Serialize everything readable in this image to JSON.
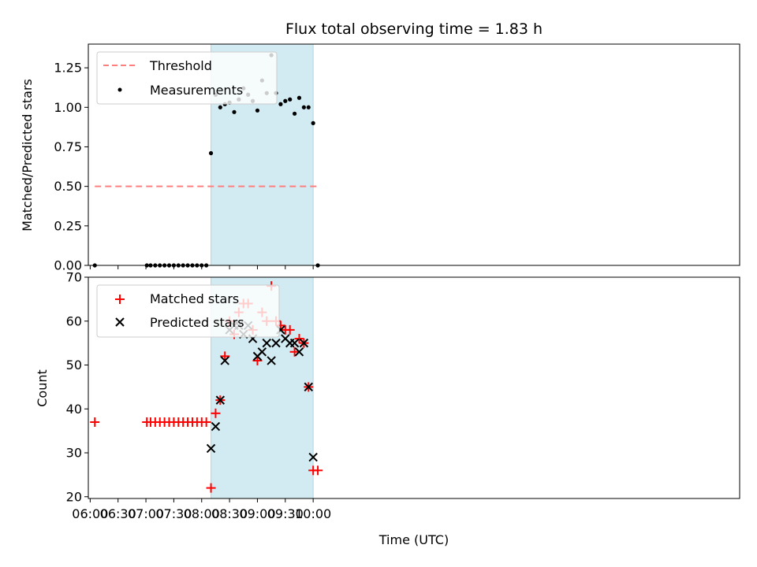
{
  "chart_data": {
    "type": "scatter",
    "title": "Flux total observing time = 1.83 h",
    "xlabel": "Time (UTC)",
    "xlim_min": [
      358,
      1059
    ],
    "xticks": [
      {
        "min": 360,
        "label": "06:00"
      },
      {
        "min": 390,
        "label": "06:30"
      },
      {
        "min": 420,
        "label": "07:00"
      },
      {
        "min": 450,
        "label": "07:30"
      },
      {
        "min": 480,
        "label": "08:00"
      },
      {
        "min": 510,
        "label": "08:30"
      },
      {
        "min": 540,
        "label": "09:00"
      },
      {
        "min": 570,
        "label": "09:30"
      },
      {
        "min": 600,
        "label": "10:00"
      }
    ],
    "shaded_span_min": [
      490,
      600
    ],
    "shaded_color": "#add8e6",
    "panels": [
      {
        "ylabel": "Matched/Predicted stars",
        "ylim": [
          0,
          1.4
        ],
        "yticks": [
          "0.00",
          "0.25",
          "0.50",
          "0.75",
          "1.00",
          "1.25"
        ],
        "ytick_values": [
          0,
          0.25,
          0.5,
          0.75,
          1.0,
          1.25
        ],
        "legend": [
          "Threshold",
          "Measurements"
        ],
        "series": [
          {
            "name": "Threshold",
            "kind": "dashed-line",
            "color": "#ff7f7f",
            "x_min": [
              365,
              605
            ],
            "y": 0.5
          },
          {
            "name": "Measurements",
            "kind": "dot",
            "color": "#000000",
            "x_min": [
              365,
              421,
              425,
              430,
              435,
              440,
              445,
              450,
              455,
              460,
              465,
              470,
              475,
              480,
              485,
              490,
              495,
              500,
              505,
              510,
              515,
              520,
              525,
              530,
              535,
              540,
              545,
              550,
              555,
              560,
              565,
              570,
              575,
              580,
              585,
              590,
              595,
              600,
              605
            ],
            "y": [
              0,
              0,
              0,
              0,
              0,
              0,
              0,
              0,
              0,
              0,
              0,
              0,
              0,
              0,
              0,
              0.71,
              1.08,
              1.0,
              1.02,
              1.03,
              0.97,
              1.05,
              1.12,
              1.08,
              1.04,
              0.98,
              1.17,
              1.09,
              1.33,
              1.09,
              1.02,
              1.04,
              1.05,
              0.96,
              1.06,
              1.0,
              1.0,
              0.9,
              0
            ]
          }
        ]
      },
      {
        "ylabel": "Count",
        "ylim": [
          19.6,
          70
        ],
        "yticks": [
          "20",
          "30",
          "40",
          "50",
          "60",
          "70"
        ],
        "ytick_values": [
          20,
          30,
          40,
          50,
          60,
          70
        ],
        "legend": [
          "Matched stars",
          "Predicted stars"
        ],
        "series": [
          {
            "name": "Matched stars",
            "kind": "plus",
            "color": "#ff0000",
            "x_min": [
              365,
              421,
              425,
              430,
              435,
              440,
              445,
              450,
              455,
              460,
              465,
              470,
              475,
              480,
              485,
              490,
              495,
              500,
              505,
              510,
              515,
              520,
              525,
              530,
              535,
              540,
              545,
              550,
              555,
              560,
              565,
              570,
              575,
              580,
              585,
              590,
              595,
              600,
              605
            ],
            "y": [
              37,
              37,
              37,
              37,
              37,
              37,
              37,
              37,
              37,
              37,
              37,
              37,
              37,
              37,
              37,
              22,
              39,
              42,
              52,
              60,
              57,
              62,
              64,
              64,
              58,
              51,
              62,
              60,
              68,
              60,
              59,
              58,
              58,
              53,
              56,
              55,
              45,
              26,
              26
            ]
          },
          {
            "name": "Predicted stars",
            "kind": "cross",
            "color": "#000000",
            "x_min": [
              490,
              495,
              500,
              505,
              510,
              515,
              520,
              525,
              530,
              535,
              540,
              545,
              550,
              555,
              560,
              565,
              570,
              575,
              580,
              585,
              590,
              595,
              600
            ],
            "y": [
              31,
              36,
              42,
              51,
              58,
              59,
              59,
              57,
              59,
              56,
              52,
              53,
              55,
              51,
              55,
              58,
              56,
              55,
              55,
              53,
              55,
              45,
              29
            ]
          }
        ]
      }
    ]
  }
}
